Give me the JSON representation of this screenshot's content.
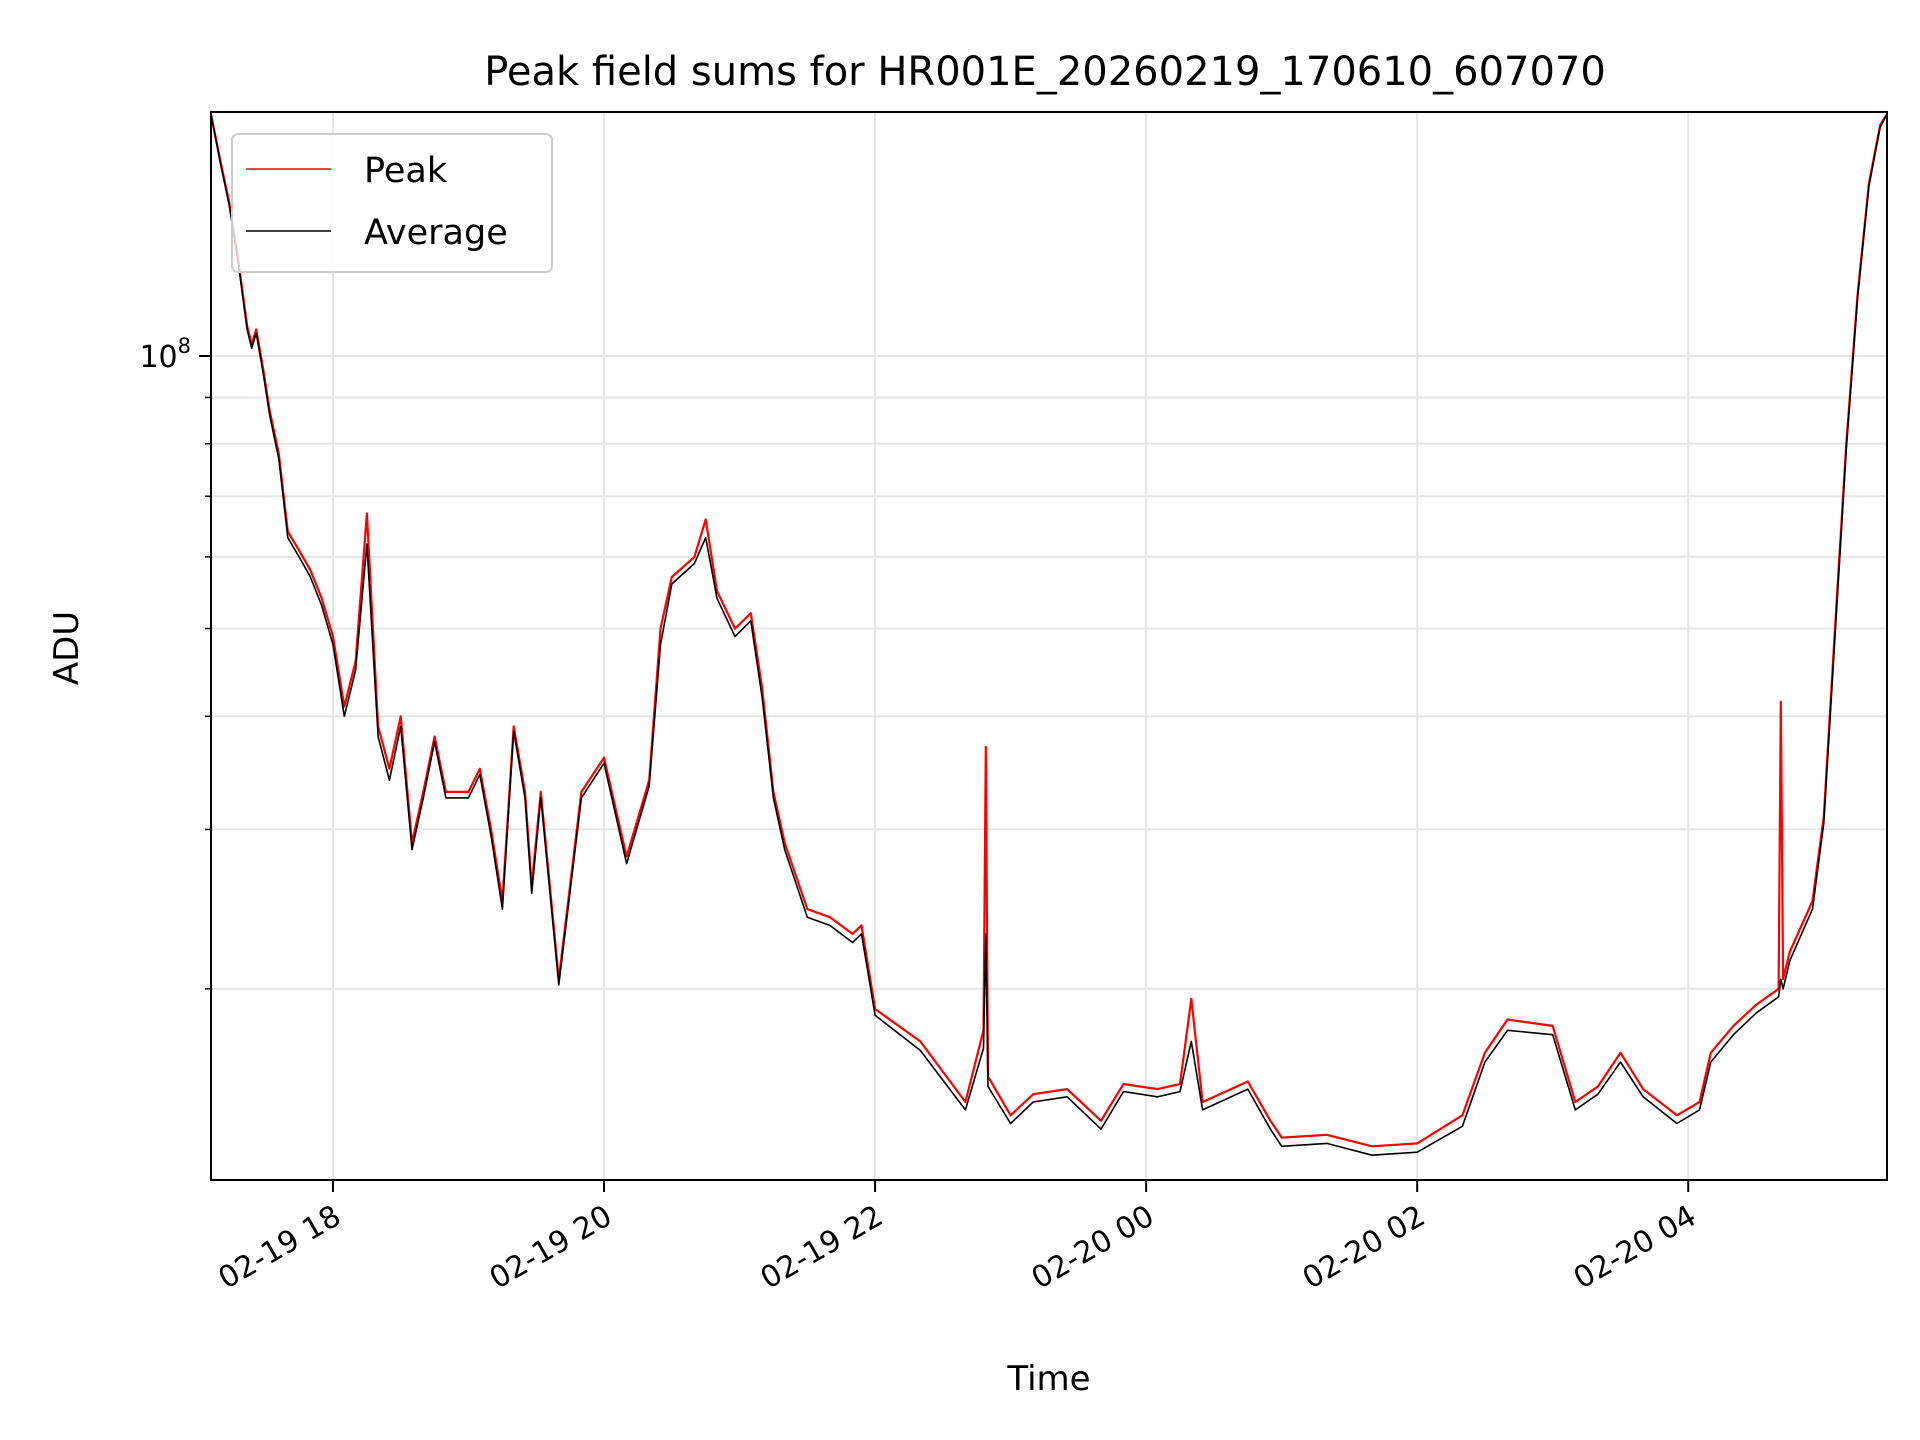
{
  "chart_data": {
    "type": "line",
    "title": "Peak field sums for HR001E_20260219_170610_607070",
    "xlabel": "Time",
    "ylabel": "ADU",
    "y_scale": "log",
    "ylim": [
      12300000,
      186000000
    ],
    "xlim": [
      "2026-02-19 17:06",
      "2026-02-20 05:28"
    ],
    "grid": true,
    "legend_position": "upper-left",
    "x_ticks": [
      {
        "value": "2026-02-19 18:00",
        "label": "02-19 18"
      },
      {
        "value": "2026-02-19 20:00",
        "label": "02-19 20"
      },
      {
        "value": "2026-02-19 22:00",
        "label": "02-19 22"
      },
      {
        "value": "2026-02-20 00:00",
        "label": "02-20 00"
      },
      {
        "value": "2026-02-20 02:00",
        "label": "02-20 02"
      },
      {
        "value": "2026-02-20 04:00",
        "label": "02-20 04"
      }
    ],
    "y_major_ticks": [
      {
        "value": 100000000,
        "base": "10",
        "exp": "8"
      }
    ],
    "y_minor_ticks": [
      20000000,
      30000000,
      40000000,
      50000000,
      60000000,
      70000000,
      80000000,
      90000000,
      200000000
    ],
    "series": [
      {
        "name": "Peak",
        "color": "#ff0000",
        "x": [
          "2026-02-19 17:06",
          "2026-02-19 17:10",
          "2026-02-19 17:14",
          "2026-02-19 17:18",
          "2026-02-19 17:22",
          "2026-02-19 17:24",
          "2026-02-19 17:26",
          "2026-02-19 17:29",
          "2026-02-19 17:32",
          "2026-02-19 17:36",
          "2026-02-19 17:40",
          "2026-02-19 17:45",
          "2026-02-19 17:50",
          "2026-02-19 17:55",
          "2026-02-19 18:00",
          "2026-02-19 18:05",
          "2026-02-19 18:10",
          "2026-02-19 18:15",
          "2026-02-19 18:20",
          "2026-02-19 18:25",
          "2026-02-19 18:30",
          "2026-02-19 18:35",
          "2026-02-19 18:40",
          "2026-02-19 18:45",
          "2026-02-19 18:50",
          "2026-02-19 19:00",
          "2026-02-19 19:05",
          "2026-02-19 19:10",
          "2026-02-19 19:15",
          "2026-02-19 19:20",
          "2026-02-19 19:25",
          "2026-02-19 19:28",
          "2026-02-19 19:32",
          "2026-02-19 19:40",
          "2026-02-19 19:50",
          "2026-02-19 20:00",
          "2026-02-19 20:10",
          "2026-02-19 20:20",
          "2026-02-19 20:25",
          "2026-02-19 20:30",
          "2026-02-19 20:40",
          "2026-02-19 20:45",
          "2026-02-19 20:50",
          "2026-02-19 20:58",
          "2026-02-19 21:05",
          "2026-02-19 21:10",
          "2026-02-19 21:15",
          "2026-02-19 21:20",
          "2026-02-19 21:30",
          "2026-02-19 21:40",
          "2026-02-19 21:50",
          "2026-02-19 21:54",
          "2026-02-19 22:00",
          "2026-02-19 22:20",
          "2026-02-19 22:40",
          "2026-02-19 22:48",
          "2026-02-19 22:49",
          "2026-02-19 22:50",
          "2026-02-19 23:00",
          "2026-02-19 23:10",
          "2026-02-19 23:25",
          "2026-02-19 23:40",
          "2026-02-19 23:50",
          "2026-02-20 00:05",
          "2026-02-20 00:15",
          "2026-02-20 00:20",
          "2026-02-20 00:25",
          "2026-02-20 00:45",
          "2026-02-20 00:55",
          "2026-02-20 01:00",
          "2026-02-20 01:20",
          "2026-02-20 01:40",
          "2026-02-20 02:00",
          "2026-02-20 02:20",
          "2026-02-20 02:30",
          "2026-02-20 02:40",
          "2026-02-20 03:00",
          "2026-02-20 03:10",
          "2026-02-20 03:20",
          "2026-02-20 03:30",
          "2026-02-20 03:40",
          "2026-02-20 03:55",
          "2026-02-20 04:05",
          "2026-02-20 04:10",
          "2026-02-20 04:20",
          "2026-02-20 04:30",
          "2026-02-20 04:40",
          "2026-02-20 04:41",
          "2026-02-20 04:42",
          "2026-02-20 04:45",
          "2026-02-20 04:55",
          "2026-02-20 05:00",
          "2026-02-20 05:05",
          "2026-02-20 05:10",
          "2026-02-20 05:15",
          "2026-02-20 05:20",
          "2026-02-20 05:25",
          "2026-02-20 05:28"
        ],
        "y": [
          185000000,
          165000000,
          148000000,
          128000000,
          108000000,
          103000000,
          107000000,
          97000000,
          87000000,
          78000000,
          64000000,
          61000000,
          58000000,
          54000000,
          49000000,
          41000000,
          46000000,
          67000000,
          39000000,
          35000000,
          40000000,
          29000000,
          33000000,
          38000000,
          33000000,
          33000000,
          35000000,
          30000000,
          25000000,
          39000000,
          33000000,
          26000000,
          33000000,
          20500000,
          33000000,
          36000000,
          28000000,
          34000000,
          50000000,
          57000000,
          60000000,
          66000000,
          55000000,
          50000000,
          52000000,
          43000000,
          33000000,
          29000000,
          24500000,
          24000000,
          23000000,
          23500000,
          19000000,
          17500000,
          15000000,
          18000000,
          37000000,
          16000000,
          14500000,
          15300000,
          15500000,
          14300000,
          15700000,
          15500000,
          15700000,
          19500000,
          15000000,
          15800000,
          14300000,
          13700000,
          13800000,
          13400000,
          13500000,
          14500000,
          17000000,
          18500000,
          18200000,
          15000000,
          15600000,
          17000000,
          15500000,
          14500000,
          15000000,
          17000000,
          18200000,
          19200000,
          20000000,
          41500000,
          20500000,
          22000000,
          25000000,
          31000000,
          50000000,
          80000000,
          117000000,
          155000000,
          180000000,
          185000000
        ]
      },
      {
        "name": "Average",
        "color": "#000000",
        "x": [
          "2026-02-19 17:06",
          "2026-02-19 17:10",
          "2026-02-19 17:14",
          "2026-02-19 17:18",
          "2026-02-19 17:22",
          "2026-02-19 17:24",
          "2026-02-19 17:26",
          "2026-02-19 17:29",
          "2026-02-19 17:32",
          "2026-02-19 17:36",
          "2026-02-19 17:40",
          "2026-02-19 17:45",
          "2026-02-19 17:50",
          "2026-02-19 17:55",
          "2026-02-19 18:00",
          "2026-02-19 18:05",
          "2026-02-19 18:10",
          "2026-02-19 18:15",
          "2026-02-19 18:20",
          "2026-02-19 18:25",
          "2026-02-19 18:30",
          "2026-02-19 18:35",
          "2026-02-19 18:40",
          "2026-02-19 18:45",
          "2026-02-19 18:50",
          "2026-02-19 19:00",
          "2026-02-19 19:05",
          "2026-02-19 19:10",
          "2026-02-19 19:15",
          "2026-02-19 19:20",
          "2026-02-19 19:25",
          "2026-02-19 19:28",
          "2026-02-19 19:32",
          "2026-02-19 19:40",
          "2026-02-19 19:50",
          "2026-02-19 20:00",
          "2026-02-19 20:10",
          "2026-02-19 20:20",
          "2026-02-19 20:25",
          "2026-02-19 20:30",
          "2026-02-19 20:40",
          "2026-02-19 20:45",
          "2026-02-19 20:50",
          "2026-02-19 20:58",
          "2026-02-19 21:05",
          "2026-02-19 21:10",
          "2026-02-19 21:15",
          "2026-02-19 21:20",
          "2026-02-19 21:30",
          "2026-02-19 21:40",
          "2026-02-19 21:50",
          "2026-02-19 21:54",
          "2026-02-19 22:00",
          "2026-02-19 22:20",
          "2026-02-19 22:40",
          "2026-02-19 22:48",
          "2026-02-19 22:49",
          "2026-02-19 22:50",
          "2026-02-19 23:00",
          "2026-02-19 23:10",
          "2026-02-19 23:25",
          "2026-02-19 23:40",
          "2026-02-19 23:50",
          "2026-02-20 00:05",
          "2026-02-20 00:15",
          "2026-02-20 00:20",
          "2026-02-20 00:25",
          "2026-02-20 00:45",
          "2026-02-20 00:55",
          "2026-02-20 01:00",
          "2026-02-20 01:20",
          "2026-02-20 01:40",
          "2026-02-20 02:00",
          "2026-02-20 02:20",
          "2026-02-20 02:30",
          "2026-02-20 02:40",
          "2026-02-20 03:00",
          "2026-02-20 03:10",
          "2026-02-20 03:20",
          "2026-02-20 03:30",
          "2026-02-20 03:40",
          "2026-02-20 03:55",
          "2026-02-20 04:05",
          "2026-02-20 04:10",
          "2026-02-20 04:20",
          "2026-02-20 04:30",
          "2026-02-20 04:40",
          "2026-02-20 04:41",
          "2026-02-20 04:42",
          "2026-02-20 04:45",
          "2026-02-20 04:55",
          "2026-02-20 05:00",
          "2026-02-20 05:05",
          "2026-02-20 05:10",
          "2026-02-20 05:15",
          "2026-02-20 05:20",
          "2026-02-20 05:25",
          "2026-02-20 05:28"
        ],
        "y": [
          185000000,
          164000000,
          147000000,
          127000000,
          107000000,
          102000000,
          106000000,
          96000000,
          86000000,
          77000000,
          63000000,
          60000000,
          57000000,
          53000000,
          48000000,
          40000000,
          45000000,
          62000000,
          38000000,
          34000000,
          39000000,
          28500000,
          32500000,
          37500000,
          32500000,
          32500000,
          34500000,
          29500000,
          24500000,
          38500000,
          32500000,
          25500000,
          32500000,
          20200000,
          32500000,
          35500000,
          27500000,
          33500000,
          48000000,
          56000000,
          59000000,
          63000000,
          54000000,
          49000000,
          51000000,
          42000000,
          32500000,
          28500000,
          24000000,
          23500000,
          22500000,
          23000000,
          18700000,
          17100000,
          14700000,
          17200000,
          23000000,
          15600000,
          14200000,
          15000000,
          15200000,
          14000000,
          15400000,
          15200000,
          15400000,
          17500000,
          14700000,
          15500000,
          14000000,
          13400000,
          13500000,
          13100000,
          13200000,
          14100000,
          16600000,
          18000000,
          17800000,
          14700000,
          15300000,
          16600000,
          15200000,
          14200000,
          14700000,
          16600000,
          17800000,
          18800000,
          19600000,
          20500000,
          20000000,
          21500000,
          24500000,
          30500000,
          49000000,
          79000000,
          116000000,
          154000000,
          179000000,
          185000000
        ]
      }
    ]
  }
}
